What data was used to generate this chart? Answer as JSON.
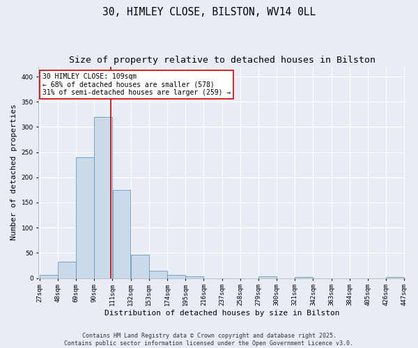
{
  "title_line1": "30, HIMLEY CLOSE, BILSTON, WV14 0LL",
  "title_line2": "Size of property relative to detached houses in Bilston",
  "xlabel": "Distribution of detached houses by size in Bilston",
  "ylabel": "Number of detached properties",
  "bar_color": "#c9daea",
  "bar_edge_color": "#6699bb",
  "background_color": "#e8edf5",
  "grid_color": "#ffffff",
  "vline_value": 109,
  "vline_color": "#cc0000",
  "annotation_text": "30 HIMLEY CLOSE: 109sqm\n← 68% of detached houses are smaller (578)\n31% of semi-detached houses are larger (259) →",
  "annotation_box_color": "#ffffff",
  "annotation_box_edge": "#cc0000",
  "bins_start": [
    27,
    48,
    69,
    90,
    111,
    132,
    153,
    174,
    195,
    216,
    237,
    258,
    279,
    300,
    321,
    342,
    363,
    384,
    405,
    426
  ],
  "bin_width": 21,
  "bar_heights": [
    6,
    32,
    240,
    320,
    175,
    46,
    15,
    6,
    4,
    0,
    0,
    0,
    4,
    0,
    2,
    0,
    0,
    0,
    0,
    2
  ],
  "ylim": [
    0,
    420
  ],
  "yticks": [
    0,
    50,
    100,
    150,
    200,
    250,
    300,
    350,
    400
  ],
  "footer_text": "Contains HM Land Registry data © Crown copyright and database right 2025.\nContains public sector information licensed under the Open Government Licence v3.0.",
  "title_fontsize": 10.5,
  "subtitle_fontsize": 9.5,
  "tick_fontsize": 6.5,
  "label_fontsize": 8,
  "footer_fontsize": 6,
  "annot_fontsize": 7
}
